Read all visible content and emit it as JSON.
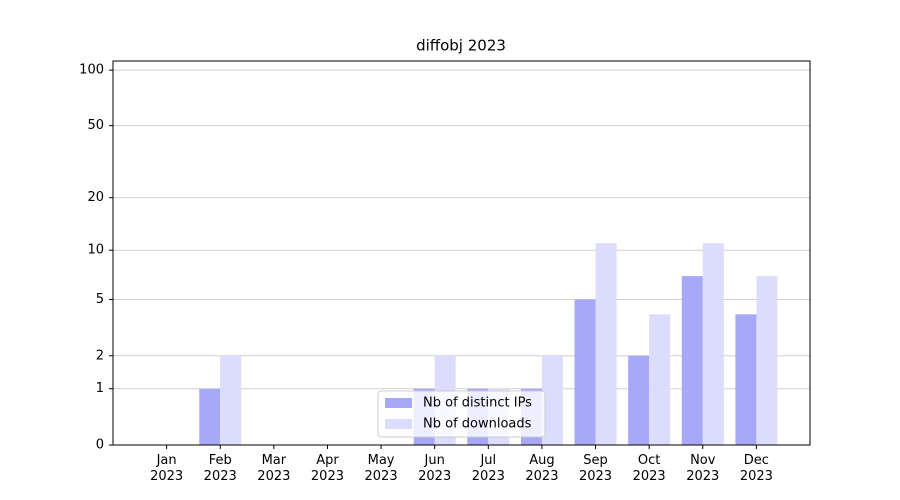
{
  "chart_data": {
    "type": "bar",
    "title": "diffobj 2023",
    "categories": [
      "Jan 2023",
      "Feb 2023",
      "Mar 2023",
      "Apr 2023",
      "May 2023",
      "Jun 2023",
      "Jul 2023",
      "Aug 2023",
      "Sep 2023",
      "Oct 2023",
      "Nov 2023",
      "Dec 2023"
    ],
    "series": [
      {
        "name": "Nb of distinct IPs",
        "color": "#a8a8f8",
        "values": [
          0,
          1,
          0,
          0,
          0,
          1,
          1,
          1,
          5,
          2,
          7,
          4
        ]
      },
      {
        "name": "Nb of downloads",
        "color": "#dcdcfc",
        "values": [
          0,
          2,
          0,
          0,
          0,
          2,
          1,
          2,
          11,
          4,
          11,
          7
        ]
      }
    ],
    "yscale": "log1p",
    "ylim": [
      0,
      112
    ],
    "yticks": [
      0,
      1,
      2,
      5,
      10,
      20,
      50,
      100
    ],
    "grid": true,
    "legend": "lower center"
  }
}
